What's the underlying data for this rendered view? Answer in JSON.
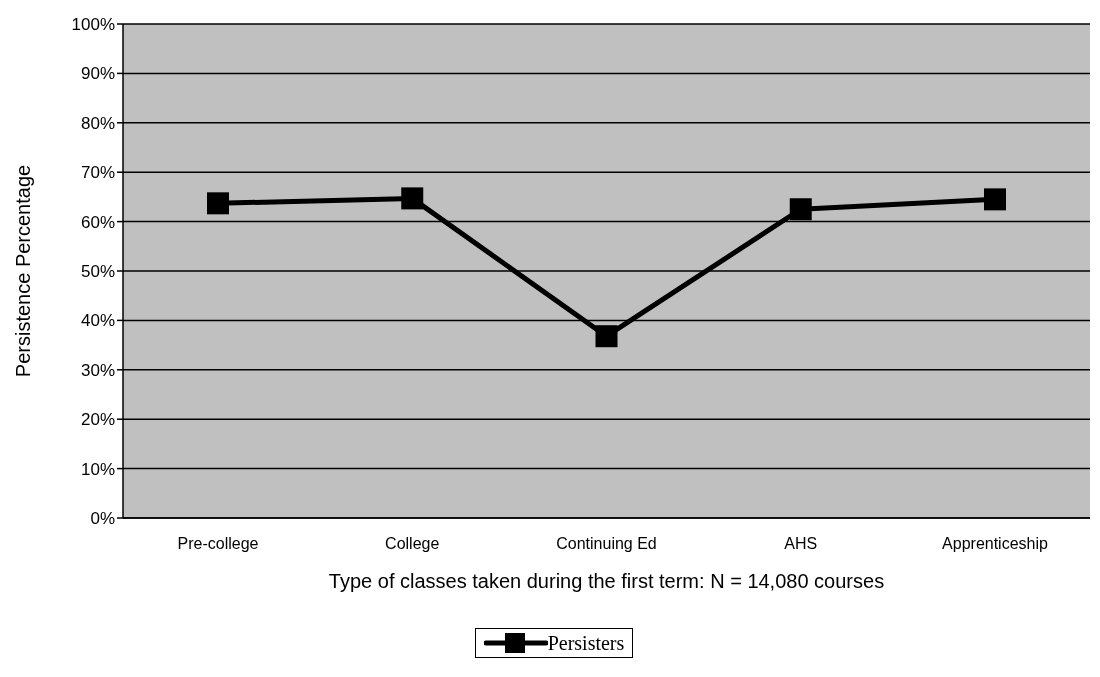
{
  "chart_data": {
    "type": "line",
    "xlabel": "Type of classes taken during the first term: N = 14,080 courses",
    "ylabel": "Persistence Percentage",
    "categories": [
      "Pre-college",
      "College",
      "Continuing Ed",
      "AHS",
      "Apprenticeship"
    ],
    "series": [
      {
        "name": "Persisters",
        "color": "#000000",
        "values": [
          63.7,
          64.7,
          36.8,
          62.5,
          64.5
        ]
      }
    ],
    "ylim": [
      0,
      100
    ],
    "yticks": [
      {
        "value": 0,
        "label": "0%"
      },
      {
        "value": 10,
        "label": "10%"
      },
      {
        "value": 20,
        "label": "20%"
      },
      {
        "value": 30,
        "label": "30%"
      },
      {
        "value": 40,
        "label": "40%"
      },
      {
        "value": 50,
        "label": "50%"
      },
      {
        "value": 60,
        "label": "60%"
      },
      {
        "value": 70,
        "label": "70%"
      },
      {
        "value": 80,
        "label": "80%"
      },
      {
        "value": 90,
        "label": "90%"
      },
      {
        "value": 100,
        "label": "100%"
      }
    ],
    "grid": "y",
    "legend": "bottom",
    "marker": "square",
    "line_style": "solid"
  }
}
